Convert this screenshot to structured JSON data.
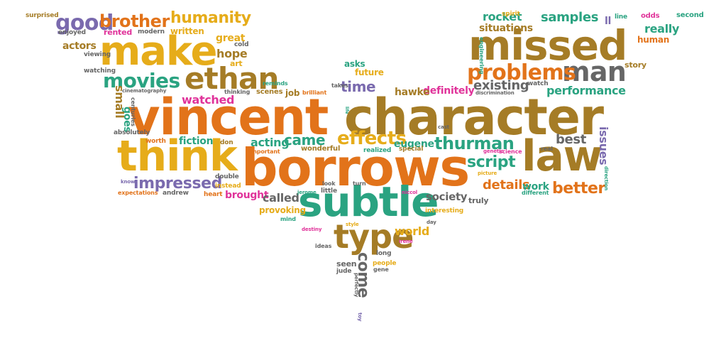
{
  "palette": {
    "orange": "#e2731a",
    "gold": "#e6ac1a",
    "brown": "#a57c26",
    "teal": "#2aa381",
    "purple": "#7a6aae",
    "gray": "#666666",
    "pink": "#e0339a",
    "olive": "#8aa53a"
  },
  "words": [
    {
      "text": "vincent",
      "color": "orange"
    },
    {
      "text": "character",
      "color": "brown"
    },
    {
      "text": "borrows",
      "color": "orange"
    },
    {
      "text": "missed",
      "color": "brown"
    },
    {
      "text": "make",
      "color": "gold"
    },
    {
      "text": "think",
      "color": "gold"
    },
    {
      "text": "law",
      "color": "brown"
    },
    {
      "text": "subtle",
      "color": "teal"
    },
    {
      "text": "type",
      "color": "brown"
    },
    {
      "text": "ethan",
      "color": "brown"
    },
    {
      "text": "man",
      "color": "gray"
    },
    {
      "text": "problems",
      "color": "orange"
    },
    {
      "text": "good",
      "color": "purple"
    },
    {
      "text": "brother",
      "color": "orange"
    },
    {
      "text": "humanity",
      "color": "gold"
    },
    {
      "text": "movies",
      "color": "teal"
    },
    {
      "text": "effects",
      "color": "gold"
    },
    {
      "text": "thurman",
      "color": "teal"
    },
    {
      "text": "script",
      "color": "teal"
    },
    {
      "text": "impressed",
      "color": "purple"
    },
    {
      "text": "better",
      "color": "orange"
    },
    {
      "text": "details",
      "color": "orange"
    },
    {
      "text": "came",
      "color": "teal"
    },
    {
      "text": "existing",
      "color": "gray"
    },
    {
      "text": "time",
      "color": "purple"
    },
    {
      "text": "come",
      "color": "gray"
    },
    {
      "text": "acting",
      "color": "teal"
    },
    {
      "text": "rocket",
      "color": "teal"
    },
    {
      "text": "samples",
      "color": "teal"
    },
    {
      "text": "really",
      "color": "teal"
    },
    {
      "text": "performance",
      "color": "teal"
    },
    {
      "text": "definitely",
      "color": "pink"
    },
    {
      "text": "eugene",
      "color": "teal"
    },
    {
      "text": "hawke",
      "color": "brown"
    },
    {
      "text": "best",
      "color": "gray"
    },
    {
      "text": "watched",
      "color": "pink"
    },
    {
      "text": "fiction",
      "color": "teal"
    },
    {
      "text": "brought",
      "color": "pink"
    },
    {
      "text": "called",
      "color": "gray"
    },
    {
      "text": "society",
      "color": "gray"
    },
    {
      "text": "world",
      "color": "gold"
    },
    {
      "text": "goes",
      "color": "teal"
    },
    {
      "text": "small",
      "color": "brown"
    },
    {
      "text": "issues",
      "color": "purple"
    },
    {
      "text": "work",
      "color": "teal"
    },
    {
      "text": "hope",
      "color": "brown"
    },
    {
      "text": "great",
      "color": "gold"
    },
    {
      "text": "future",
      "color": "gold"
    },
    {
      "text": "asks",
      "color": "teal"
    },
    {
      "text": "written",
      "color": "gold"
    },
    {
      "text": "actors",
      "color": "brown"
    },
    {
      "text": "rented",
      "color": "pink"
    },
    {
      "text": "enjoyed",
      "color": "gray"
    },
    {
      "text": "modern",
      "color": "gray"
    },
    {
      "text": "viewing",
      "color": "gray"
    },
    {
      "text": "watching",
      "color": "gray"
    },
    {
      "text": "surprised",
      "color": "brown"
    },
    {
      "text": "cold",
      "color": "gray"
    },
    {
      "text": "art",
      "color": "gold"
    },
    {
      "text": "spirit",
      "color": "gold"
    },
    {
      "text": "line",
      "color": "teal"
    },
    {
      "text": "odds",
      "color": "pink"
    },
    {
      "text": "second",
      "color": "teal"
    },
    {
      "text": "ll",
      "color": "purple"
    },
    {
      "text": "situations",
      "color": "brown"
    },
    {
      "text": "human",
      "color": "orange"
    },
    {
      "text": "story",
      "color": "brown"
    },
    {
      "text": "engineering",
      "color": "teal"
    },
    {
      "text": "watch",
      "color": "gray"
    },
    {
      "text": "discrimination",
      "color": "gray"
    },
    {
      "text": "cinematography",
      "color": "gray"
    },
    {
      "text": "thinking",
      "color": "gray"
    },
    {
      "text": "scenes",
      "color": "brown"
    },
    {
      "text": "job",
      "color": "brown"
    },
    {
      "text": "brilliant",
      "color": "orange"
    },
    {
      "text": "reminds",
      "color": "teal"
    },
    {
      "text": "takes",
      "color": "gray"
    },
    {
      "text": "centuries",
      "color": "gray"
    },
    {
      "text": "absolutely",
      "color": "gray"
    },
    {
      "text": "worth",
      "color": "orange"
    },
    {
      "text": "don",
      "color": "brown"
    },
    {
      "text": "important",
      "color": "orange"
    },
    {
      "text": "wonderful",
      "color": "brown"
    },
    {
      "text": "realized",
      "color": "teal"
    },
    {
      "text": "special",
      "color": "brown"
    },
    {
      "text": "cast",
      "color": "gray"
    },
    {
      "text": "genetic",
      "color": "pink"
    },
    {
      "text": "real",
      "color": "gray"
    },
    {
      "text": "science",
      "color": "pink"
    },
    {
      "text": "picture",
      "color": "gold"
    },
    {
      "text": "direction",
      "color": "teal"
    },
    {
      "text": "life",
      "color": "teal"
    },
    {
      "text": "double",
      "color": "gray"
    },
    {
      "text": "instead",
      "color": "gold"
    },
    {
      "text": "heart",
      "color": "orange"
    },
    {
      "text": "andrew",
      "color": "gray"
    },
    {
      "text": "know",
      "color": "purple"
    },
    {
      "text": "expectations",
      "color": "orange"
    },
    {
      "text": "jerome",
      "color": "teal"
    },
    {
      "text": "look",
      "color": "gray"
    },
    {
      "text": "turn",
      "color": "gray"
    },
    {
      "text": "little",
      "color": "gray"
    },
    {
      "text": "niccol",
      "color": "pink"
    },
    {
      "text": "provoking",
      "color": "gold"
    },
    {
      "text": "different",
      "color": "teal"
    },
    {
      "text": "truly",
      "color": "gray"
    },
    {
      "text": "interesting",
      "color": "gold"
    },
    {
      "text": "mind",
      "color": "teal"
    },
    {
      "text": "destiny",
      "color": "pink"
    },
    {
      "text": "style",
      "color": "gold"
    },
    {
      "text": "day",
      "color": "gray"
    },
    {
      "text": "ideas",
      "color": "gray"
    },
    {
      "text": "irene",
      "color": "pink"
    },
    {
      "text": "long",
      "color": "gray"
    },
    {
      "text": "seen",
      "color": "gray"
    },
    {
      "text": "people",
      "color": "gold"
    },
    {
      "text": "gene",
      "color": "gray"
    },
    {
      "text": "jude",
      "color": "gray"
    },
    {
      "text": "perfectly",
      "color": "gray"
    },
    {
      "text": "toy",
      "color": "purple"
    }
  ]
}
